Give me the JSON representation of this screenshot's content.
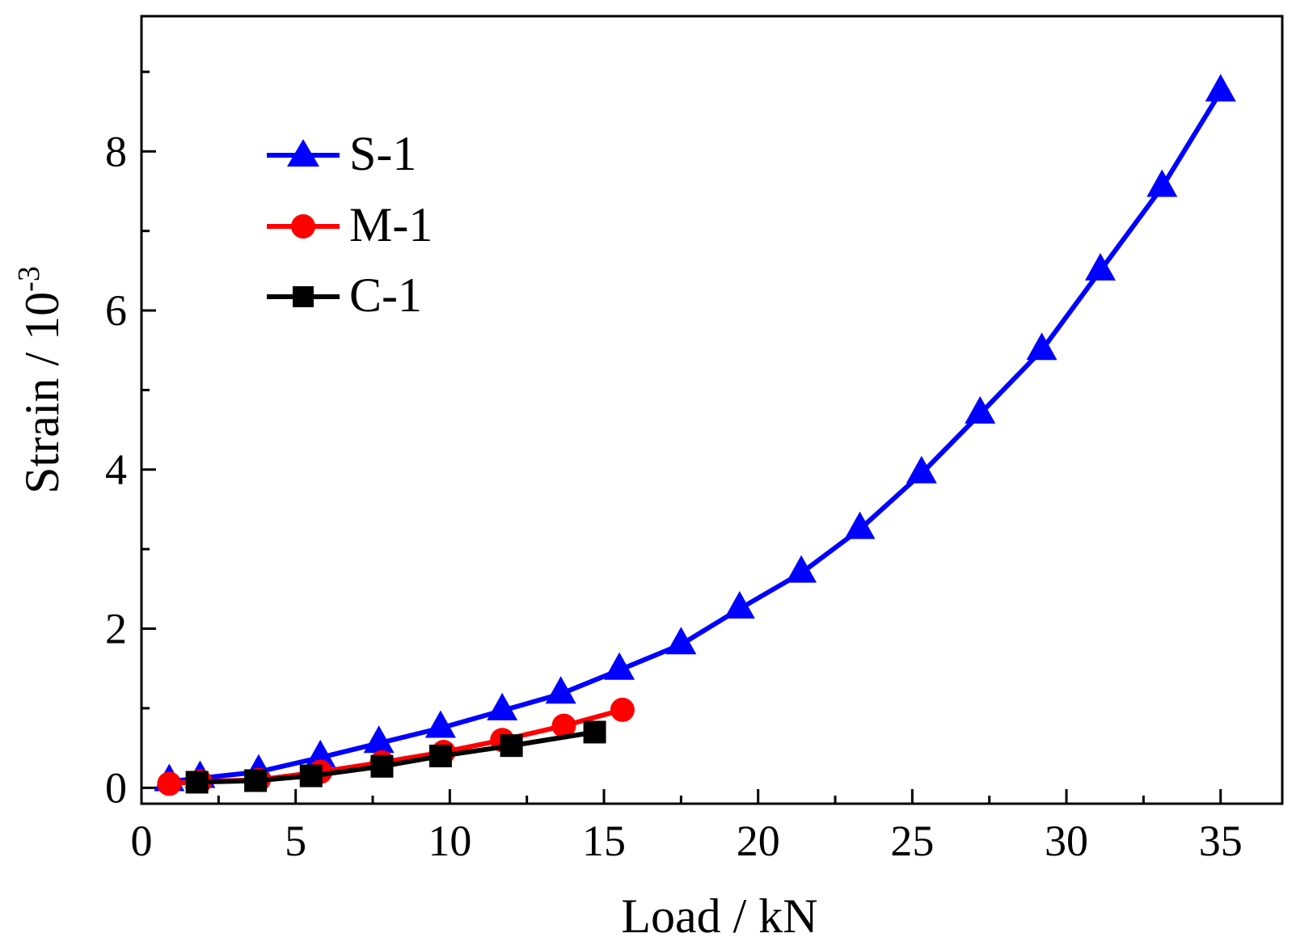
{
  "chart_data": {
    "type": "line",
    "title": "",
    "xlabel": "Load / kN",
    "ylabel_main": "Strain / 10",
    "ylabel_sup": "-3",
    "xlim": [
      0,
      37
    ],
    "ylim": [
      -0.2,
      9.7
    ],
    "xticks": [
      0,
      5,
      10,
      15,
      20,
      25,
      30,
      35
    ],
    "yticks": [
      0,
      2,
      4,
      6,
      8
    ],
    "xticks_minor": [
      2.5,
      7.5,
      12.5,
      17.5,
      22.5,
      27.5,
      32.5
    ],
    "yticks_minor": [
      1,
      3,
      5,
      7,
      9
    ],
    "legend_position": "top-left",
    "series": [
      {
        "name": "S-1",
        "color": "#0000ff",
        "marker": "triangle",
        "x": [
          0.9,
          1.9,
          3.8,
          5.8,
          7.7,
          9.7,
          11.7,
          13.6,
          15.5,
          17.5,
          19.4,
          21.4,
          23.3,
          25.3,
          27.2,
          29.2,
          31.1,
          33.1,
          35.0
        ],
        "y": [
          0.08,
          0.12,
          0.2,
          0.38,
          0.56,
          0.75,
          0.97,
          1.18,
          1.48,
          1.8,
          2.25,
          2.7,
          3.25,
          3.95,
          4.7,
          5.5,
          6.5,
          7.55,
          8.75
        ]
      },
      {
        "name": "M-1",
        "color": "#ff0000",
        "marker": "circle",
        "x": [
          0.9,
          1.9,
          3.8,
          5.8,
          7.8,
          9.8,
          11.7,
          13.7,
          15.6
        ],
        "y": [
          0.05,
          0.08,
          0.1,
          0.2,
          0.32,
          0.45,
          0.6,
          0.78,
          0.98
        ]
      },
      {
        "name": "C-1",
        "color": "#000000",
        "marker": "square",
        "x": [
          1.8,
          3.7,
          5.5,
          7.8,
          9.7,
          12.0,
          14.7
        ],
        "y": [
          0.07,
          0.09,
          0.15,
          0.27,
          0.4,
          0.53,
          0.7
        ]
      }
    ]
  }
}
